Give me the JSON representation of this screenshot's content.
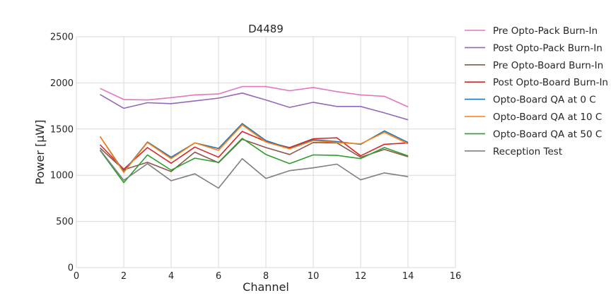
{
  "chart_data": {
    "type": "line",
    "title": "D4489",
    "xlabel": "Channel",
    "ylabel": "Power [μW]",
    "xlim": [
      0,
      16
    ],
    "ylim": [
      0,
      2500
    ],
    "xticks": [
      0,
      2,
      4,
      6,
      8,
      10,
      12,
      14,
      16
    ],
    "yticks": [
      0,
      500,
      1000,
      1500,
      2000,
      2500
    ],
    "grid": true,
    "legend_position": "outside-right",
    "x": [
      1,
      2,
      3,
      4,
      5,
      6,
      7,
      8,
      9,
      10,
      11,
      12,
      13,
      14
    ],
    "series": [
      {
        "name": "Pre Opto-Pack Burn-In",
        "color": "#e377c2",
        "values": [
          1940,
          1820,
          1815,
          1840,
          1870,
          1880,
          1960,
          1960,
          1915,
          1950,
          1905,
          1870,
          1855,
          1740
        ]
      },
      {
        "name": "Post Opto-Pack Burn-In",
        "color": "#9467bd",
        "values": [
          1875,
          1725,
          1785,
          1775,
          1805,
          1835,
          1890,
          1815,
          1735,
          1790,
          1745,
          1745,
          1675,
          1600
        ]
      },
      {
        "name": "Pre Opto-Board Burn-In",
        "color": "#8c564b",
        "values": [
          1295,
          1060,
          1140,
          1040,
          1250,
          1135,
          1390,
          1300,
          1225,
          1355,
          1350,
          1195,
          1280,
          1200
        ]
      },
      {
        "name": "Post Opto-Board Burn-In",
        "color": "#d62728",
        "values": [
          1330,
          1065,
          1300,
          1130,
          1305,
          1195,
          1475,
          1365,
          1300,
          1395,
          1405,
          1210,
          1335,
          1350
        ]
      },
      {
        "name": "Opto-Board QA at 0 C",
        "color": "#1f77b4",
        "values": [
          1420,
          1040,
          1360,
          1195,
          1350,
          1290,
          1560,
          1375,
          1290,
          1385,
          1365,
          1335,
          1480,
          1355
        ]
      },
      {
        "name": "Opto-Board QA at 10 C",
        "color": "#ff7f0e",
        "values": [
          1420,
          1030,
          1355,
          1180,
          1350,
          1270,
          1545,
          1360,
          1285,
          1375,
          1355,
          1340,
          1465,
          1340
        ]
      },
      {
        "name": "Opto-Board QA at 50 C",
        "color": "#2ca02c",
        "values": [
          1270,
          920,
          1220,
          1055,
          1185,
          1140,
          1400,
          1225,
          1125,
          1220,
          1215,
          1180,
          1300,
          1210
        ]
      },
      {
        "name": "Reception Test",
        "color": "#7f7f7f",
        "values": [
          1275,
          945,
          1125,
          940,
          1015,
          860,
          1180,
          965,
          1050,
          1080,
          1120,
          950,
          1025,
          985
        ]
      }
    ]
  }
}
